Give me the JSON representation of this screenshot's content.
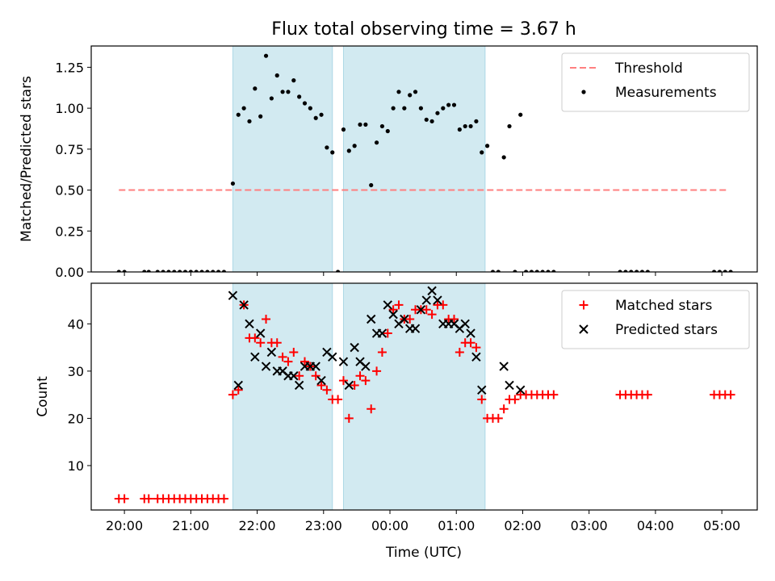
{
  "chart_data": [
    {
      "type": "scatter",
      "title": "Flux total observing time = 3.67 h",
      "xlabel": "",
      "ylabel": "Matched/Predicted stars",
      "ylim": [
        0,
        1.38
      ],
      "yticks": [
        0.0,
        0.25,
        0.5,
        0.75,
        1.0,
        1.25
      ],
      "ytick_labels": [
        "0.00",
        "0.25",
        "0.50",
        "0.75",
        "1.00",
        "1.25"
      ],
      "legend_position": "top-right",
      "shaded_spans": [
        [
          "21:38",
          "23:08"
        ],
        [
          "23:18",
          "01:26"
        ]
      ],
      "threshold": {
        "name": "Threshold",
        "value": 0.5,
        "x_start": "19:55",
        "x_end": "05:05",
        "color": "#ff7f7f",
        "style": "dashed"
      },
      "series": [
        {
          "name": "Measurements",
          "marker": "dot",
          "color": "#000000",
          "points": [
            [
              "19:55",
              0
            ],
            [
              "20:00",
              0
            ],
            [
              "20:18",
              0
            ],
            [
              "20:22",
              0
            ],
            [
              "20:30",
              0
            ],
            [
              "20:35",
              0
            ],
            [
              "20:40",
              0
            ],
            [
              "20:45",
              0
            ],
            [
              "20:50",
              0
            ],
            [
              "20:55",
              0
            ],
            [
              "21:00",
              0
            ],
            [
              "21:05",
              0
            ],
            [
              "21:10",
              0
            ],
            [
              "21:15",
              0
            ],
            [
              "21:20",
              0
            ],
            [
              "21:25",
              0
            ],
            [
              "21:30",
              0
            ],
            [
              "21:38",
              0.54
            ],
            [
              "21:43",
              0.96
            ],
            [
              "21:48",
              1.0
            ],
            [
              "21:53",
              0.92
            ],
            [
              "21:58",
              1.12
            ],
            [
              "22:03",
              0.95
            ],
            [
              "22:08",
              1.32
            ],
            [
              "22:13",
              1.06
            ],
            [
              "22:18",
              1.2
            ],
            [
              "22:23",
              1.1
            ],
            [
              "22:28",
              1.1
            ],
            [
              "22:33",
              1.17
            ],
            [
              "22:38",
              1.07
            ],
            [
              "22:43",
              1.03
            ],
            [
              "22:48",
              1.0
            ],
            [
              "22:53",
              0.94
            ],
            [
              "22:58",
              0.96
            ],
            [
              "23:03",
              0.76
            ],
            [
              "23:08",
              0.73
            ],
            [
              "23:13",
              0
            ],
            [
              "23:18",
              0.87
            ],
            [
              "23:23",
              0.74
            ],
            [
              "23:28",
              0.77
            ],
            [
              "23:33",
              0.9
            ],
            [
              "23:38",
              0.9
            ],
            [
              "23:43",
              0.53
            ],
            [
              "23:48",
              0.79
            ],
            [
              "23:53",
              0.89
            ],
            [
              "23:58",
              0.86
            ],
            [
              "00:03",
              1.0
            ],
            [
              "00:08",
              1.1
            ],
            [
              "00:13",
              1.0
            ],
            [
              "00:18",
              1.08
            ],
            [
              "00:23",
              1.1
            ],
            [
              "00:28",
              1.0
            ],
            [
              "00:33",
              0.93
            ],
            [
              "00:38",
              0.92
            ],
            [
              "00:43",
              0.97
            ],
            [
              "00:48",
              1.0
            ],
            [
              "00:53",
              1.02
            ],
            [
              "00:58",
              1.02
            ],
            [
              "01:03",
              0.87
            ],
            [
              "01:08",
              0.89
            ],
            [
              "01:13",
              0.89
            ],
            [
              "01:18",
              0.92
            ],
            [
              "01:23",
              0.73
            ],
            [
              "01:28",
              0.77
            ],
            [
              "01:33",
              0
            ],
            [
              "01:38",
              0
            ],
            [
              "01:43",
              0.7
            ],
            [
              "01:48",
              0.89
            ],
            [
              "01:53",
              0
            ],
            [
              "01:58",
              0.96
            ],
            [
              "02:03",
              0
            ],
            [
              "02:08",
              0
            ],
            [
              "02:13",
              0
            ],
            [
              "02:18",
              0
            ],
            [
              "02:23",
              0
            ],
            [
              "02:28",
              0
            ],
            [
              "03:28",
              0
            ],
            [
              "03:33",
              0
            ],
            [
              "03:38",
              0
            ],
            [
              "03:43",
              0
            ],
            [
              "03:48",
              0
            ],
            [
              "03:53",
              0
            ],
            [
              "04:53",
              0
            ],
            [
              "04:58",
              0
            ],
            [
              "05:03",
              0
            ],
            [
              "05:08",
              0
            ]
          ]
        }
      ]
    },
    {
      "type": "scatter",
      "title": "",
      "xlabel": "Time (UTC)",
      "ylabel": "Count",
      "ylim": [
        0.6,
        48.6
      ],
      "yticks": [
        10,
        20,
        30,
        40
      ],
      "ytick_labels": [
        "10",
        "20",
        "30",
        "40"
      ],
      "xticks": [
        "20:00",
        "21:00",
        "22:00",
        "23:00",
        "00:00",
        "01:00",
        "02:00",
        "03:00",
        "04:00",
        "05:00"
      ],
      "legend_position": "top-right",
      "shaded_spans": [
        [
          "21:38",
          "23:08"
        ],
        [
          "23:18",
          "01:26"
        ]
      ],
      "series": [
        {
          "name": "Matched stars",
          "marker": "plus",
          "color": "#ff0000",
          "points": [
            [
              "19:55",
              3
            ],
            [
              "20:00",
              3
            ],
            [
              "20:18",
              3
            ],
            [
              "20:22",
              3
            ],
            [
              "20:30",
              3
            ],
            [
              "20:35",
              3
            ],
            [
              "20:40",
              3
            ],
            [
              "20:45",
              3
            ],
            [
              "20:50",
              3
            ],
            [
              "20:55",
              3
            ],
            [
              "21:00",
              3
            ],
            [
              "21:05",
              3
            ],
            [
              "21:10",
              3
            ],
            [
              "21:15",
              3
            ],
            [
              "21:20",
              3
            ],
            [
              "21:25",
              3
            ],
            [
              "21:30",
              3
            ],
            [
              "21:38",
              25
            ],
            [
              "21:43",
              26
            ],
            [
              "21:48",
              44
            ],
            [
              "21:53",
              37
            ],
            [
              "21:58",
              37
            ],
            [
              "22:03",
              36
            ],
            [
              "22:08",
              41
            ],
            [
              "22:13",
              36
            ],
            [
              "22:18",
              36
            ],
            [
              "22:23",
              33
            ],
            [
              "22:28",
              32
            ],
            [
              "22:33",
              34
            ],
            [
              "22:38",
              29
            ],
            [
              "22:43",
              32
            ],
            [
              "22:48",
              31
            ],
            [
              "22:53",
              29
            ],
            [
              "22:58",
              27
            ],
            [
              "23:03",
              26
            ],
            [
              "23:08",
              24
            ],
            [
              "23:13",
              24
            ],
            [
              "23:18",
              28
            ],
            [
              "23:23",
              20
            ],
            [
              "23:28",
              27
            ],
            [
              "23:33",
              29
            ],
            [
              "23:38",
              28
            ],
            [
              "23:43",
              22
            ],
            [
              "23:48",
              30
            ],
            [
              "23:53",
              34
            ],
            [
              "23:58",
              38
            ],
            [
              "00:03",
              43
            ],
            [
              "00:08",
              44
            ],
            [
              "00:13",
              41
            ],
            [
              "00:18",
              41
            ],
            [
              "00:23",
              43
            ],
            [
              "00:28",
              43
            ],
            [
              "00:33",
              43
            ],
            [
              "00:38",
              42
            ],
            [
              "00:43",
              44
            ],
            [
              "00:48",
              44
            ],
            [
              "00:53",
              41
            ],
            [
              "00:58",
              41
            ],
            [
              "01:03",
              34
            ],
            [
              "01:08",
              36
            ],
            [
              "01:13",
              36
            ],
            [
              "01:18",
              35
            ],
            [
              "01:23",
              24
            ],
            [
              "01:28",
              20
            ],
            [
              "01:33",
              20
            ],
            [
              "01:38",
              20
            ],
            [
              "01:43",
              22
            ],
            [
              "01:48",
              24
            ],
            [
              "01:53",
              24
            ],
            [
              "01:58",
              25
            ],
            [
              "02:03",
              25
            ],
            [
              "02:08",
              25
            ],
            [
              "02:13",
              25
            ],
            [
              "02:18",
              25
            ],
            [
              "02:23",
              25
            ],
            [
              "02:28",
              25
            ],
            [
              "03:28",
              25
            ],
            [
              "03:33",
              25
            ],
            [
              "03:38",
              25
            ],
            [
              "03:43",
              25
            ],
            [
              "03:48",
              25
            ],
            [
              "03:53",
              25
            ],
            [
              "04:53",
              25
            ],
            [
              "04:58",
              25
            ],
            [
              "05:03",
              25
            ],
            [
              "05:08",
              25
            ]
          ]
        },
        {
          "name": "Predicted stars",
          "marker": "x",
          "color": "#000000",
          "points": [
            [
              "21:38",
              46
            ],
            [
              "21:43",
              27
            ],
            [
              "21:48",
              44
            ],
            [
              "21:53",
              40
            ],
            [
              "21:58",
              33
            ],
            [
              "22:03",
              38
            ],
            [
              "22:08",
              31
            ],
            [
              "22:13",
              34
            ],
            [
              "22:18",
              30
            ],
            [
              "22:23",
              30
            ],
            [
              "22:28",
              29
            ],
            [
              "22:33",
              29
            ],
            [
              "22:38",
              27
            ],
            [
              "22:43",
              31
            ],
            [
              "22:48",
              31
            ],
            [
              "22:53",
              31
            ],
            [
              "22:58",
              28
            ],
            [
              "23:03",
              34
            ],
            [
              "23:08",
              33
            ],
            [
              "23:18",
              32
            ],
            [
              "23:23",
              27
            ],
            [
              "23:28",
              35
            ],
            [
              "23:33",
              32
            ],
            [
              "23:38",
              31
            ],
            [
              "23:43",
              41
            ],
            [
              "23:48",
              38
            ],
            [
              "23:53",
              38
            ],
            [
              "23:58",
              44
            ],
            [
              "00:03",
              42
            ],
            [
              "00:08",
              40
            ],
            [
              "00:13",
              41
            ],
            [
              "00:18",
              39
            ],
            [
              "00:23",
              39
            ],
            [
              "00:28",
              43
            ],
            [
              "00:33",
              45
            ],
            [
              "00:38",
              47
            ],
            [
              "00:43",
              45
            ],
            [
              "00:48",
              40
            ],
            [
              "00:53",
              40
            ],
            [
              "00:58",
              40
            ],
            [
              "01:03",
              39
            ],
            [
              "01:08",
              40
            ],
            [
              "01:13",
              38
            ],
            [
              "01:18",
              33
            ],
            [
              "01:23",
              26
            ],
            [
              "01:43",
              31
            ],
            [
              "01:48",
              27
            ],
            [
              "01:58",
              26
            ]
          ]
        }
      ]
    }
  ]
}
